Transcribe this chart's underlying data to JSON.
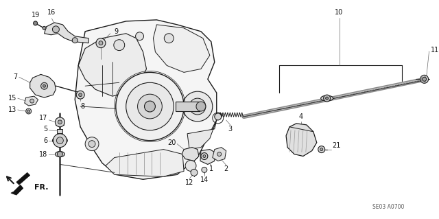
{
  "background_color": "#ffffff",
  "diagram_code": "SE03 A0700",
  "fig_width": 6.4,
  "fig_height": 3.19,
  "dpi": 100,
  "line_color": "#1a1a1a",
  "text_color": "#111111",
  "label_fontsize": 7.0
}
